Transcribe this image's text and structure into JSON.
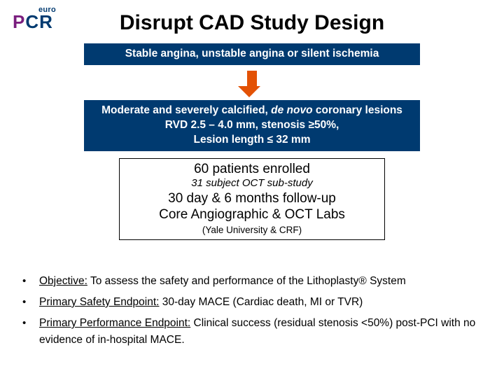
{
  "logo": {
    "euro": "euro",
    "p": "P",
    "c": "C",
    "r": "R"
  },
  "title": "Disrupt CAD Study Design",
  "flow": {
    "box1": "Stable angina, unstable angina or silent ischemia",
    "box2_line1a": "Moderate and severely calcified, ",
    "box2_line1b_italic": "de novo",
    "box2_line1c": " coronary lesions",
    "box2_line2": "RVD 2.5 – 4.0 mm, stenosis ≥50%,",
    "box2_line3": "Lesion length ≤  32 mm",
    "enrolled": "60 patients enrolled",
    "substudy": "31 subject OCT sub-study",
    "followup_l1": "30 day & 6 months follow-up",
    "followup_l2": "Core Angiographic & OCT Labs",
    "labs": "(Yale University & CRF)"
  },
  "bullets": {
    "b1_label": "Objective:",
    "b1_text": " To assess the safety and performance of the Lithoplasty® System",
    "b2_label": "Primary Safety Endpoint:",
    "b2_text": " 30-day MACE (Cardiac death, MI or TVR)",
    "b3_label": "Primary Performance Endpoint:",
    "b3_text": " Clinical success (residual stenosis <50%) post-PCI with no evidence of in-hospital MACE."
  },
  "style": {
    "dark_blue": "#003a70",
    "arrow_color": "#e35205",
    "purple": "#7a1e7e",
    "bg": "#ffffff",
    "text": "#000000",
    "title_fontsize": 30,
    "body_fontsize": 15.5,
    "box_font_weight": "bold"
  }
}
